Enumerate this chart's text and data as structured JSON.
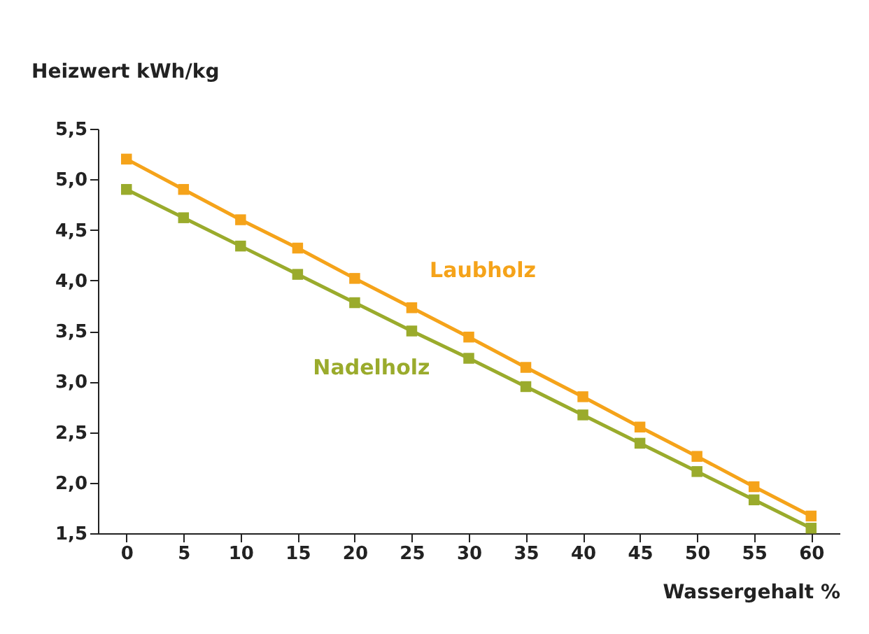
{
  "chart_data": {
    "type": "line",
    "xlabel": "Wassergehalt %",
    "ylabel": "Heizwert kWh/kg",
    "x": [
      0,
      5,
      10,
      15,
      20,
      25,
      30,
      35,
      40,
      45,
      50,
      55,
      60
    ],
    "series": [
      {
        "name": "Laubholz",
        "color": "#f5a31a",
        "values": [
          5.2,
          4.9,
          4.6,
          4.32,
          4.02,
          3.73,
          3.44,
          3.14,
          2.85,
          2.55,
          2.26,
          1.96,
          1.67
        ]
      },
      {
        "name": "Nadelholz",
        "color": "#9aab2c",
        "values": [
          4.9,
          4.62,
          4.34,
          4.06,
          3.78,
          3.5,
          3.23,
          2.95,
          2.67,
          2.39,
          2.11,
          1.83,
          1.55
        ]
      }
    ],
    "xlim": [
      -2.5,
      62.5
    ],
    "xticks": [
      0,
      5,
      10,
      15,
      20,
      25,
      30,
      35,
      40,
      45,
      50,
      55,
      60
    ],
    "ylim": [
      1.5,
      5.5
    ],
    "yticks": [
      {
        "value": 1.5,
        "label": "1,5"
      },
      {
        "value": 2.0,
        "label": "2,0"
      },
      {
        "value": 2.5,
        "label": "2,5"
      },
      {
        "value": 3.0,
        "label": "3,0"
      },
      {
        "value": 3.5,
        "label": "3,5"
      },
      {
        "value": 4.0,
        "label": "4,0"
      },
      {
        "value": 4.5,
        "label": "4,5"
      },
      {
        "value": 5.0,
        "label": "5,0"
      },
      {
        "value": 5.5,
        "label": "5,5"
      }
    ],
    "grid": false,
    "legend": false,
    "marker": "square",
    "line_style": "solid"
  }
}
